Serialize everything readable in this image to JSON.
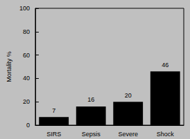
{
  "chart_data": {
    "type": "bar",
    "y_label": "Mortality %",
    "categories": [
      "SIRS",
      "Sepsis",
      "Severe",
      "Shock"
    ],
    "values": [
      7,
      16,
      20,
      46
    ],
    "color": "#000000",
    "ylim": [
      0,
      100
    ],
    "yticks": [
      0,
      20,
      40,
      60,
      80,
      100
    ],
    "grid": false,
    "data_labels": true
  }
}
